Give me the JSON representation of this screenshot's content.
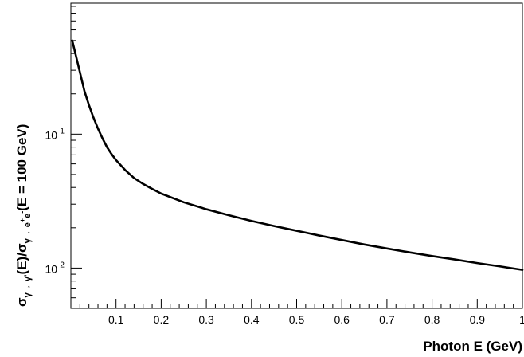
{
  "chart_data": {
    "type": "line",
    "title": "",
    "xlabel": "Photon E (GeV)",
    "ylabel": {
      "lead": "σ",
      "sub1": "γ→ γ'",
      "mid": "(E)/σ",
      "sub2": "γ→ e",
      "sup2": "+",
      "sub2b": "e",
      "sup2b": "-",
      "tail": "(E = 100 GeV)"
    },
    "xlim": [
      0.0,
      1.0
    ],
    "ylim": [
      0.005,
      0.95
    ],
    "yscale": "log",
    "grid": false,
    "x_ticks": [
      0.1,
      0.2,
      0.3,
      0.4,
      0.5,
      0.6,
      0.7,
      0.8,
      0.9,
      1.0
    ],
    "x_ticklabels": [
      "0.1",
      "0.2",
      "0.3",
      "0.4",
      "0.5",
      "0.6",
      "0.7",
      "0.8",
      "0.9",
      "1"
    ],
    "y_ticklabels": [
      {
        "value": 0.1,
        "base": "10",
        "exp": "-1"
      },
      {
        "value": 0.01,
        "base": "10",
        "exp": "-2"
      }
    ],
    "series": [
      {
        "color": "#000000",
        "x": [
          0.003,
          0.01,
          0.02,
          0.03,
          0.04,
          0.05,
          0.06,
          0.07,
          0.08,
          0.09,
          0.1,
          0.12,
          0.14,
          0.16,
          0.18,
          0.2,
          0.25,
          0.3,
          0.35,
          0.4,
          0.45,
          0.5,
          0.55,
          0.6,
          0.65,
          0.7,
          0.75,
          0.8,
          0.85,
          0.9,
          0.95,
          1.0
        ],
        "y": [
          0.5,
          0.4,
          0.29,
          0.21,
          0.165,
          0.133,
          0.11,
          0.093,
          0.08,
          0.071,
          0.064,
          0.054,
          0.047,
          0.0425,
          0.039,
          0.036,
          0.031,
          0.0275,
          0.0248,
          0.0225,
          0.0206,
          0.019,
          0.0175,
          0.0162,
          0.015,
          0.014,
          0.0131,
          0.0123,
          0.0116,
          0.0109,
          0.0103,
          0.0097
        ]
      }
    ]
  }
}
